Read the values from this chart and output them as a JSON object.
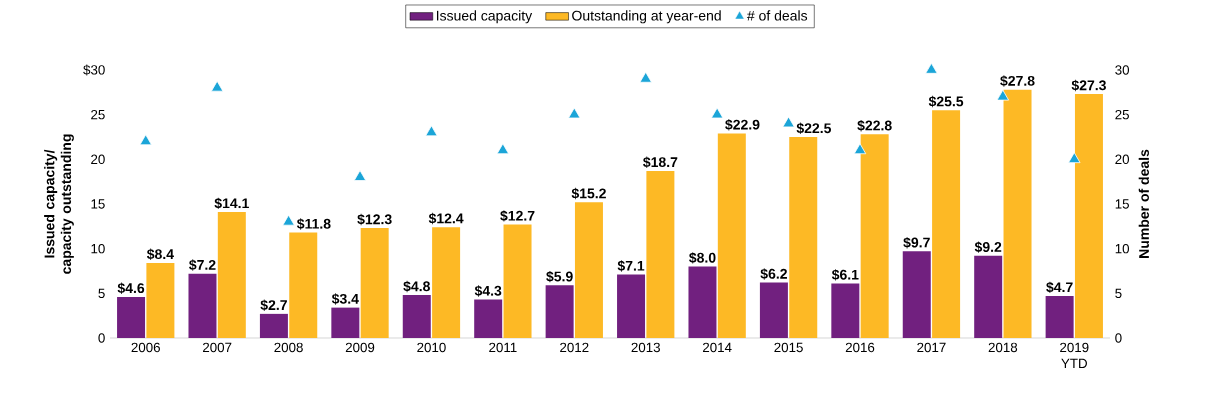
{
  "chart_data": {
    "type": "bar",
    "ylabel": "Issued capacity/ capacity outstanding",
    "y2label": "Number of deals",
    "categories": [
      "2006",
      "2007",
      "2008",
      "2009",
      "2010",
      "2011",
      "2012",
      "2013",
      "2014",
      "2015",
      "2016",
      "2017",
      "2018",
      "2019 YTD"
    ],
    "series": [
      {
        "name": "Issued capacity",
        "type": "bar",
        "color": "#71207f",
        "values": [
          4.6,
          7.2,
          2.7,
          3.4,
          4.8,
          4.3,
          5.9,
          7.1,
          8.0,
          6.2,
          6.1,
          9.7,
          9.2,
          4.7
        ],
        "value_labels": [
          "$4.6",
          "$7.2",
          "$2.7",
          "$3.4",
          "$4.8",
          "$4.3",
          "$5.9",
          "$7.1",
          "$8.0",
          "$6.2",
          "$6.1",
          "$9.7",
          "$9.2",
          "$4.7"
        ]
      },
      {
        "name": "Outstanding at year-end",
        "color": "#fdb925",
        "values": [
          8.4,
          14.1,
          11.8,
          12.3,
          12.4,
          12.7,
          15.2,
          18.7,
          22.9,
          22.5,
          22.8,
          25.5,
          27.8,
          27.3
        ],
        "value_labels": [
          "$8.4",
          "$14.1",
          "$11.8",
          "$12.3",
          "$12.4",
          "$12.7",
          "$15.2",
          "$18.7",
          "$22.9",
          "$22.5",
          "$22.8",
          "$25.5",
          "$27.8",
          "$27.3"
        ]
      },
      {
        "name": "# of deals",
        "type": "scatter",
        "axis": "y2",
        "marker": "triangle",
        "color": "#1ba5d8",
        "values": [
          22,
          28,
          13,
          18,
          23,
          21,
          25,
          29,
          25,
          24,
          21,
          30,
          27,
          20
        ]
      }
    ],
    "ylim": [
      0,
      30
    ],
    "yticks": [
      0,
      5,
      10,
      15,
      20,
      25,
      {
        "value": 30,
        "label": "$30"
      }
    ],
    "y2lim": [
      0,
      30
    ],
    "y2ticks": [
      0,
      5,
      10,
      15,
      20,
      25,
      30
    ],
    "legend": "top"
  }
}
